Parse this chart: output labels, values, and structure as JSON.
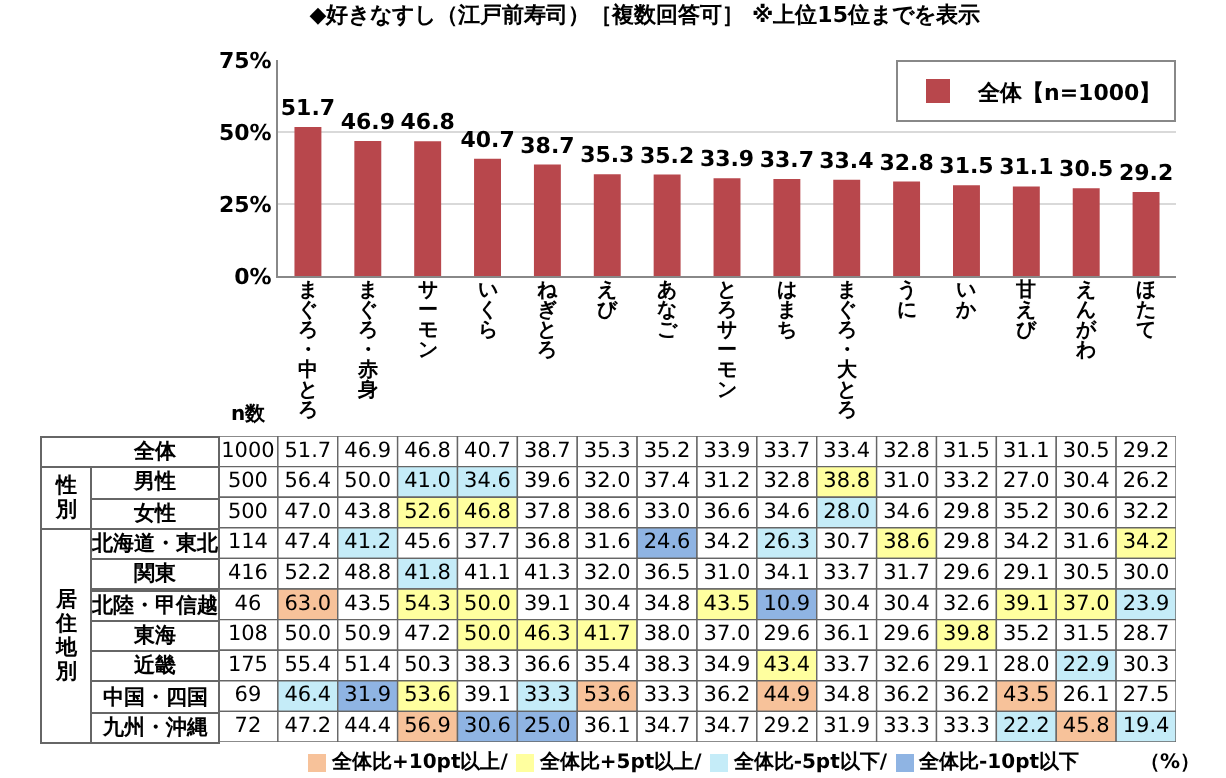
{
  "chart_data": [
    {
      "type": "bar",
      "title": "◆好きなすし（江戸前寿司）［複数回答可］ ※上位15位までを表示",
      "categories": [
        "まぐろ・中とろ",
        "まぐろ・赤身",
        "サーモン",
        "いくら",
        "ねぎとろ",
        "えび",
        "あなご",
        "とろサーモン",
        "はまち",
        "まぐろ・大とろ",
        "うに",
        "いか",
        "甘えび",
        "えんがわ",
        "ほたて"
      ],
      "series": [
        {
          "name": "全体【n=1000】",
          "color": "#b8474c",
          "values": [
            51.7,
            46.9,
            46.8,
            40.7,
            38.7,
            35.3,
            35.2,
            33.9,
            33.7,
            33.4,
            32.8,
            31.5,
            31.1,
            30.5,
            29.2
          ],
          "value_labels": [
            "51.7",
            "46.9",
            "46.8",
            "40.7",
            "38.7",
            "35.3",
            "35.2",
            "33.9",
            "33.7",
            "33.4",
            "32.8",
            "31.5",
            "31.1",
            "30.5",
            "29.2"
          ]
        }
      ],
      "ylim": [
        0,
        75
      ],
      "yticks": [
        {
          "value": 0,
          "label": "0%"
        },
        {
          "value": 25,
          "label": "25%"
        },
        {
          "value": 50,
          "label": "50%"
        },
        {
          "value": 75,
          "label": "75%"
        }
      ],
      "grid": "y",
      "legend": "top right"
    },
    {
      "type": "heatmap",
      "categories": [
        "まぐろ・中とろ",
        "まぐろ・赤身",
        "サーモン",
        "いくら",
        "ねぎとろ",
        "えび",
        "あなご",
        "とろサーモン",
        "はまち",
        "まぐろ・大とろ",
        "うに",
        "いか",
        "甘えび",
        "えんがわ",
        "ほたて"
      ],
      "y_categories": [
        "全体",
        "男性",
        "女性",
        "北海道・東北",
        "関東",
        "北陸・甲信越",
        "東海",
        "近畿",
        "中国・四国",
        "九州・沖縄"
      ],
      "y2_categories": [
        "1000",
        "500",
        "500",
        "114",
        "416",
        "46",
        "108",
        "175",
        "69",
        "72"
      ],
      "cells": [
        [
          51.7,
          46.9,
          46.8,
          40.7,
          38.7,
          35.3,
          35.2,
          33.9,
          33.7,
          33.4,
          32.8,
          31.5,
          31.1,
          30.5,
          29.2
        ],
        [
          56.4,
          50.0,
          41.0,
          34.6,
          39.6,
          32.0,
          37.4,
          31.2,
          32.8,
          38.8,
          31.0,
          33.2,
          27.0,
          30.4,
          26.2
        ],
        [
          47.0,
          43.8,
          52.6,
          46.8,
          37.8,
          38.6,
          33.0,
          36.6,
          34.6,
          28.0,
          34.6,
          29.8,
          35.2,
          30.6,
          32.2
        ],
        [
          47.4,
          41.2,
          45.6,
          37.7,
          36.8,
          31.6,
          24.6,
          34.2,
          26.3,
          30.7,
          38.6,
          29.8,
          34.2,
          31.6,
          34.2
        ],
        [
          52.2,
          48.8,
          41.8,
          41.1,
          41.3,
          32.0,
          36.5,
          31.0,
          34.1,
          33.7,
          31.7,
          29.6,
          29.1,
          30.5,
          30.0
        ],
        [
          63.0,
          43.5,
          54.3,
          50.0,
          39.1,
          30.4,
          34.8,
          43.5,
          10.9,
          30.4,
          30.4,
          32.6,
          39.1,
          37.0,
          23.9
        ],
        [
          50.0,
          50.9,
          47.2,
          50.0,
          46.3,
          41.7,
          38.0,
          37.0,
          29.6,
          36.1,
          29.6,
          39.8,
          35.2,
          31.5,
          28.7
        ],
        [
          55.4,
          51.4,
          50.3,
          38.3,
          36.6,
          35.4,
          38.3,
          34.9,
          43.4,
          33.7,
          32.6,
          29.1,
          28.0,
          22.9,
          30.3
        ],
        [
          46.4,
          31.9,
          53.6,
          39.1,
          33.3,
          53.6,
          33.3,
          36.2,
          44.9,
          34.8,
          36.2,
          36.2,
          43.5,
          26.1,
          27.5
        ],
        [
          47.2,
          44.4,
          56.9,
          30.6,
          25.0,
          36.1,
          34.7,
          34.7,
          29.2,
          31.9,
          33.3,
          33.3,
          22.2,
          45.8,
          19.4
        ]
      ],
      "cell_labels": [
        [
          "51.7",
          "46.9",
          "46.8",
          "40.7",
          "38.7",
          "35.3",
          "35.2",
          "33.9",
          "33.7",
          "33.4",
          "32.8",
          "31.5",
          "31.1",
          "30.5",
          "29.2"
        ],
        [
          "56.4",
          "50.0",
          "41.0",
          "34.6",
          "39.6",
          "32.0",
          "37.4",
          "31.2",
          "32.8",
          "38.8",
          "31.0",
          "33.2",
          "27.0",
          "30.4",
          "26.2"
        ],
        [
          "47.0",
          "43.8",
          "52.6",
          "46.8",
          "37.8",
          "38.6",
          "33.0",
          "36.6",
          "34.6",
          "28.0",
          "34.6",
          "29.8",
          "35.2",
          "30.6",
          "32.2"
        ],
        [
          "47.4",
          "41.2",
          "45.6",
          "37.7",
          "36.8",
          "31.6",
          "24.6",
          "34.2",
          "26.3",
          "30.7",
          "38.6",
          "29.8",
          "34.2",
          "31.6",
          "34.2"
        ],
        [
          "52.2",
          "48.8",
          "41.8",
          "41.1",
          "41.3",
          "32.0",
          "36.5",
          "31.0",
          "34.1",
          "33.7",
          "31.7",
          "29.6",
          "29.1",
          "30.5",
          "30.0"
        ],
        [
          "63.0",
          "43.5",
          "54.3",
          "50.0",
          "39.1",
          "30.4",
          "34.8",
          "43.5",
          "10.9",
          "30.4",
          "30.4",
          "32.6",
          "39.1",
          "37.0",
          "23.9"
        ],
        [
          "50.0",
          "50.9",
          "47.2",
          "50.0",
          "46.3",
          "41.7",
          "38.0",
          "37.0",
          "29.6",
          "36.1",
          "29.6",
          "39.8",
          "35.2",
          "31.5",
          "28.7"
        ],
        [
          "55.4",
          "51.4",
          "50.3",
          "38.3",
          "36.6",
          "35.4",
          "38.3",
          "34.9",
          "43.4",
          "33.7",
          "32.6",
          "29.1",
          "28.0",
          "22.9",
          "30.3"
        ],
        [
          "46.4",
          "31.9",
          "53.6",
          "39.1",
          "33.3",
          "53.6",
          "33.3",
          "36.2",
          "44.9",
          "34.8",
          "36.2",
          "36.2",
          "43.5",
          "26.1",
          "27.5"
        ],
        [
          "47.2",
          "44.4",
          "56.9",
          "30.6",
          "25.0",
          "36.1",
          "34.7",
          "34.7",
          "29.2",
          "31.9",
          "33.3",
          "33.3",
          "22.2",
          "45.8",
          "19.4"
        ]
      ],
      "tick_labels": "y",
      "annotations": [
        "性別",
        "居住地別",
        "全体比+10pt以上/",
        "全体比+5pt以上/",
        "全体比-5pt以下/",
        "全体比-10pt以下",
        "（%）",
        "n数"
      ]
    }
  ]
}
